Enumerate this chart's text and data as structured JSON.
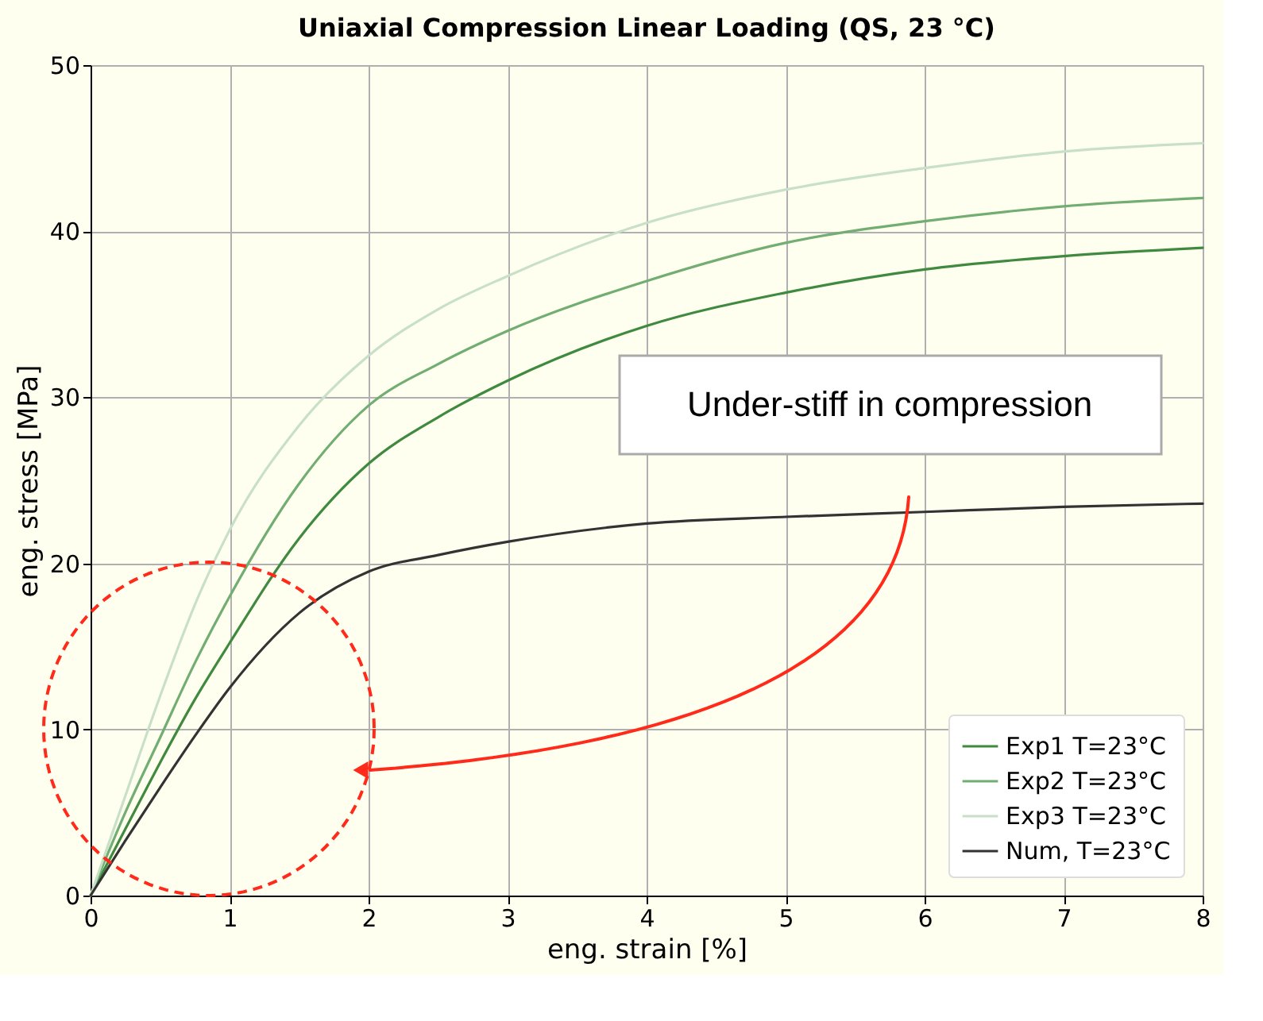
{
  "chart_data": {
    "type": "line",
    "title": "Uniaxial Compression Linear Loading (QS, 23 °C)",
    "xlabel": "eng. strain [%]",
    "ylabel": "eng. stress [MPa]",
    "x": [
      0,
      0.25,
      0.5,
      0.75,
      1,
      1.5,
      2,
      2.5,
      3,
      4,
      5,
      6,
      7,
      8
    ],
    "series": [
      {
        "name": "Exp1 T=23°C",
        "color": "#3f8a3f",
        "values": [
          0,
          4,
          8,
          11.8,
          15.2,
          21.5,
          26,
          28.8,
          31,
          34.3,
          36.3,
          37.7,
          38.5,
          39
        ]
      },
      {
        "name": "Exp2 T=23°C",
        "color": "#72ad72",
        "values": [
          0,
          5,
          9.5,
          14,
          18,
          24.8,
          29.5,
          32,
          34,
          37,
          39.3,
          40.6,
          41.5,
          42
        ]
      },
      {
        "name": "Exp3 T=23°C",
        "color": "#c8e0c8",
        "values": [
          0,
          6,
          12,
          17.5,
          22,
          28.3,
          32.5,
          35.3,
          37.3,
          40.5,
          42.5,
          43.8,
          44.8,
          45.3
        ]
      },
      {
        "name": "Num, T=23°C",
        "color": "#333333",
        "values": [
          0,
          3.3,
          6.5,
          9.6,
          12.5,
          17,
          19.5,
          20.5,
          21.3,
          22.4,
          22.8,
          23.1,
          23.4,
          23.6
        ]
      }
    ],
    "xlim": [
      0,
      8
    ],
    "xticks": [
      0,
      1,
      2,
      3,
      4,
      5,
      6,
      7,
      8
    ],
    "ylim": [
      0,
      50
    ],
    "yticks": [
      0,
      10,
      20,
      30,
      40,
      50
    ],
    "grid": true,
    "legend": "bottom right",
    "line_style": "solid",
    "annotations": [
      "Under-stiff in compression"
    ]
  }
}
